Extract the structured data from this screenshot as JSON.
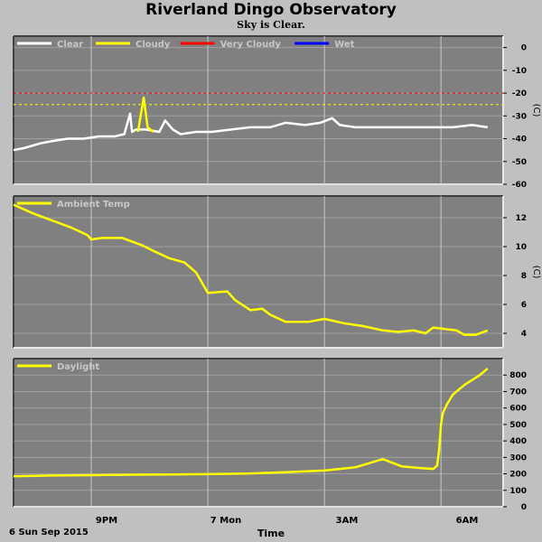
{
  "header": {
    "title": "Riverland Dingo Observatory",
    "subtitle": "Sky is Clear."
  },
  "footer": {
    "date": "6 Sun Sep 2015",
    "axis_label": "Time",
    "x_ticks": [
      "9PM",
      "7 Mon",
      "3AM",
      "6AM"
    ]
  },
  "colors": {
    "background": "#c0c0c0",
    "panel": "#808080",
    "grid": "#c8c8c8",
    "clear": "#ffffff",
    "cloudy": "#ffff00",
    "very_cloudy": "#ff0000",
    "wet": "#0000ff"
  },
  "chart_data": [
    {
      "type": "line",
      "xlabel": "Time",
      "ylabel": "(C)",
      "ylim": [
        -60,
        5
      ],
      "yticks": [
        0,
        -10,
        -20,
        -30,
        -40,
        -50,
        -60
      ],
      "legend": [
        "Clear",
        "Cloudy",
        "Very Cloudy",
        "Wet"
      ],
      "legend_colors": [
        "#ffffff",
        "#ffff00",
        "#ff0000",
        "#0000ff"
      ],
      "thresholds": [
        {
          "value": -20,
          "color": "#ff0000"
        },
        {
          "value": -25,
          "color": "#ffff00"
        }
      ],
      "series": [
        {
          "name": "Clear",
          "color": "#ffffff",
          "x_hours": [
            19.0,
            19.3,
            19.7,
            20.0,
            20.4,
            20.8,
            21.2,
            21.6,
            21.85,
            22.0,
            22.05,
            22.15,
            22.4,
            22.75,
            22.9,
            23.1,
            23.3,
            23.7,
            24.1,
            24.6,
            25.1,
            25.6,
            26.0,
            26.5,
            26.9,
            27.2,
            27.4,
            27.8,
            28.3,
            28.8,
            29.3,
            29.8,
            30.3,
            30.8,
            31.2
          ],
          "values": [
            -45,
            -44,
            -42,
            -41,
            -40,
            -40,
            -39,
            -39,
            -38,
            -29,
            -37,
            -36,
            -36,
            -37,
            -32,
            -36,
            -38,
            -37,
            -37,
            -36,
            -35,
            -35,
            -33,
            -34,
            -33,
            -31,
            -34,
            -35,
            -35,
            -35,
            -35,
            -35,
            -35,
            -34,
            -35
          ]
        },
        {
          "name": "Cloudy",
          "color": "#ffff00",
          "x_hours": [
            22.2,
            22.35,
            22.45,
            22.6
          ],
          "values": [
            -37,
            -22,
            -35,
            -37
          ]
        }
      ]
    },
    {
      "type": "line",
      "xlabel": "Time",
      "ylabel": "(C)",
      "ylim": [
        3,
        13.5
      ],
      "yticks": [
        4,
        6,
        8,
        10,
        12
      ],
      "legend": [
        "Ambient Temp"
      ],
      "legend_colors": [
        "#ffff00"
      ],
      "series": [
        {
          "name": "Ambient Temp",
          "color": "#ffff00",
          "x_hours": [
            19.0,
            19.5,
            20.0,
            20.5,
            20.9,
            21.0,
            21.3,
            21.8,
            22.3,
            22.6,
            23.0,
            23.4,
            23.7,
            24.0,
            24.5,
            24.7,
            25.1,
            25.4,
            25.6,
            26.0,
            26.6,
            27.0,
            27.5,
            28.0,
            28.5,
            28.9,
            29.3,
            29.6,
            29.8,
            30.1,
            30.4,
            30.6,
            30.9,
            31.2
          ],
          "values": [
            12.9,
            12.3,
            11.8,
            11.3,
            10.8,
            10.5,
            10.6,
            10.6,
            10.1,
            9.7,
            9.2,
            8.9,
            8.2,
            6.8,
            6.9,
            6.3,
            5.6,
            5.7,
            5.3,
            4.8,
            4.8,
            5.0,
            4.7,
            4.5,
            4.2,
            4.1,
            4.2,
            4.0,
            4.4,
            4.3,
            4.2,
            3.9,
            3.9,
            4.2
          ]
        }
      ]
    },
    {
      "type": "line",
      "xlabel": "Time",
      "ylabel": "",
      "ylim": [
        0,
        900
      ],
      "yticks": [
        0,
        100,
        200,
        300,
        400,
        500,
        600,
        700,
        800
      ],
      "legend": [
        "Daylight"
      ],
      "legend_colors": [
        "#ffff00"
      ],
      "series": [
        {
          "name": "Daylight",
          "color": "#ffff00",
          "x_hours": [
            19.0,
            20.0,
            21.0,
            22.0,
            23.0,
            24.0,
            25.0,
            26.0,
            27.0,
            27.8,
            28.5,
            29.0,
            29.5,
            29.8,
            29.9,
            29.95,
            30.0,
            30.05,
            30.15,
            30.3,
            30.6,
            31.0,
            31.2
          ],
          "values": [
            185,
            190,
            192,
            195,
            196,
            198,
            202,
            210,
            220,
            240,
            290,
            245,
            235,
            230,
            250,
            340,
            500,
            570,
            620,
            680,
            740,
            800,
            840
          ]
        }
      ]
    }
  ]
}
